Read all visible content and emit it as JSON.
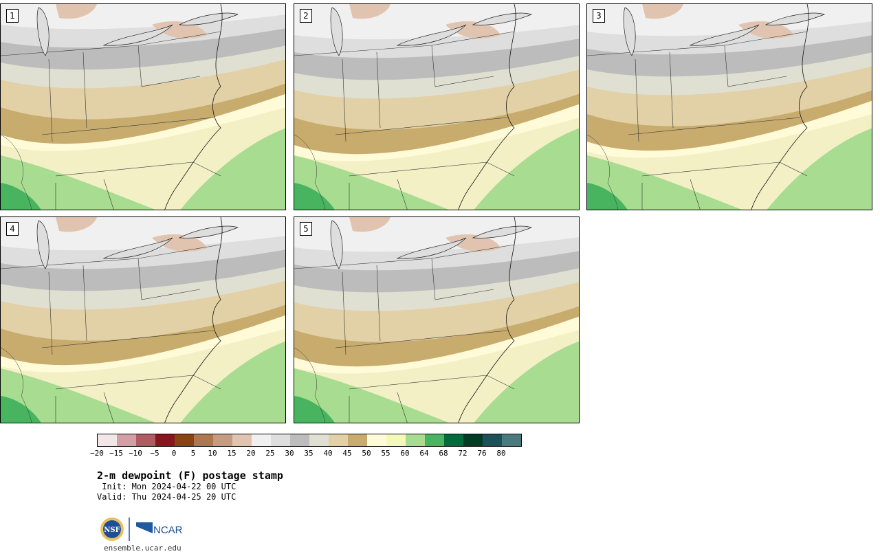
{
  "panels": [
    {
      "label": "1"
    },
    {
      "label": "2"
    },
    {
      "label": "3"
    },
    {
      "label": "4"
    },
    {
      "label": "5"
    }
  ],
  "colorbar": {
    "colors": [
      "#f2e6e6",
      "#d49ea6",
      "#b05a62",
      "#8a1520",
      "#8a4414",
      "#ad7850",
      "#c49c82",
      "#e0c4b0",
      "#f0f0f0",
      "#dedede",
      "#bcbcbc",
      "#e0e0d2",
      "#e2d0a6",
      "#c8ac6e",
      "#fffbd8",
      "#f5f9b8",
      "#a8dc90",
      "#48b460",
      "#006c3c",
      "#003c24",
      "#1e5058",
      "#4a7a7e"
    ],
    "ticks": [
      "−20",
      "−15",
      "−10",
      "−5",
      "0",
      "5",
      "10",
      "15",
      "20",
      "25",
      "30",
      "35",
      "40",
      "45",
      "50",
      "55",
      "60",
      "64",
      "68",
      "72",
      "76",
      "80"
    ]
  },
  "title": "2-m dewpoint (F) postage stamp",
  "init": " Init: Mon 2024-04-22 00 UTC",
  "valid": "Valid: Thu 2024-04-25 20 UTC",
  "logos": {
    "left": "NSF",
    "right": "NCAR"
  },
  "url": "ensemble.ucar.edu"
}
